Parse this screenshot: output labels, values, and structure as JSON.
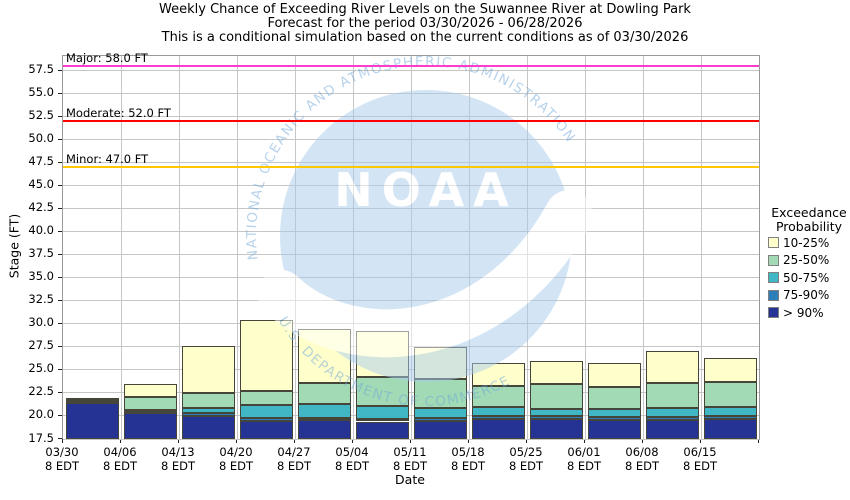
{
  "title": {
    "line1": "Weekly Chance of Exceeding River Levels on the Suwannee River at Dowling Park",
    "line2": "Forecast for the period 03/30/2026 - 06/28/2026",
    "line3": "This is a conditional simulation based on the current conditions as of 03/30/2026"
  },
  "y_axis": {
    "label": "Stage (FT)"
  },
  "x_axis": {
    "label": "Date",
    "tick_sublabel": "8 EDT"
  },
  "legend": {
    "title_line1": "Exceedance",
    "title_line2": "Probability",
    "items": [
      {
        "label": "10-25%",
        "color": "#ffffcc"
      },
      {
        "label": "25-50%",
        "color": "#a1dab4"
      },
      {
        "label": "50-75%",
        "color": "#41b6c4"
      },
      {
        "label": "75-90%",
        "color": "#2c7fb8"
      },
      {
        "label": "> 90%",
        "color": "#253494"
      }
    ]
  },
  "watermark": {
    "org": "NOAA",
    "ring_top": "NATIONAL OCEANIC AND ATMOSPHERIC ADMINISTRATION",
    "ring_bottom": "U.S. DEPARTMENT OF COMMERCE"
  },
  "chart_data": {
    "type": "bar",
    "stacked": true,
    "title": "Weekly Chance of Exceeding River Levels on the Suwannee River at Dowling Park",
    "xlabel": "Date",
    "ylabel": "Stage (FT)",
    "grid": true,
    "legend_position": "right",
    "ylim": [
      17.5,
      59.1
    ],
    "baseline_ft": 17.5,
    "y_ticks": [
      17.5,
      20.0,
      22.5,
      25.0,
      27.5,
      30.0,
      32.5,
      35.0,
      37.5,
      40.0,
      42.5,
      45.0,
      47.5,
      50.0,
      52.5,
      55.0,
      57.5
    ],
    "categories": [
      "03/30",
      "04/06",
      "04/13",
      "04/20",
      "04/27",
      "05/04",
      "05/11",
      "05/18",
      "05/25",
      "06/01",
      "06/08",
      "06/15"
    ],
    "series": [
      {
        "name": "> 90%",
        "color": "#253494",
        "top_stage_ft": [
          21.4,
          20.3,
          20.0,
          19.5,
          19.6,
          19.4,
          19.5,
          19.7,
          19.7,
          19.6,
          19.6,
          19.7
        ]
      },
      {
        "name": "75-90%",
        "color": "#2c7fb8",
        "top_stage_ft": [
          21.5,
          20.5,
          20.3,
          19.8,
          19.8,
          19.7,
          19.8,
          20.0,
          20.0,
          19.9,
          19.9,
          20.0
        ]
      },
      {
        "name": "50-75%",
        "color": "#41b6c4",
        "top_stage_ft": [
          21.6,
          20.7,
          20.9,
          21.2,
          21.3,
          21.1,
          20.9,
          21.0,
          20.8,
          20.8,
          20.9,
          21.0
        ]
      },
      {
        "name": "25-50%",
        "color": "#a1dab4",
        "top_stage_ft": [
          21.7,
          22.1,
          22.5,
          22.7,
          23.6,
          24.2,
          24.0,
          23.3,
          23.5,
          23.2,
          23.6,
          23.7
        ]
      },
      {
        "name": "10-25%",
        "color": "#ffffcc",
        "top_stage_ft": [
          22.0,
          23.5,
          27.6,
          30.4,
          29.4,
          29.2,
          27.5,
          25.8,
          26.0,
          25.8,
          27.1,
          26.3
        ]
      }
    ],
    "thresholds": [
      {
        "name": "Major",
        "stage_ft": 58.0,
        "label": "Major: 58.0 FT",
        "color": "#ff3ccc"
      },
      {
        "name": "Moderate",
        "stage_ft": 52.0,
        "label": "Moderate: 52.0 FT",
        "color": "#ff0000"
      },
      {
        "name": "Minor",
        "stage_ft": 47.0,
        "label": "Minor: 47.0 FT",
        "color": "#ffc800"
      }
    ]
  }
}
